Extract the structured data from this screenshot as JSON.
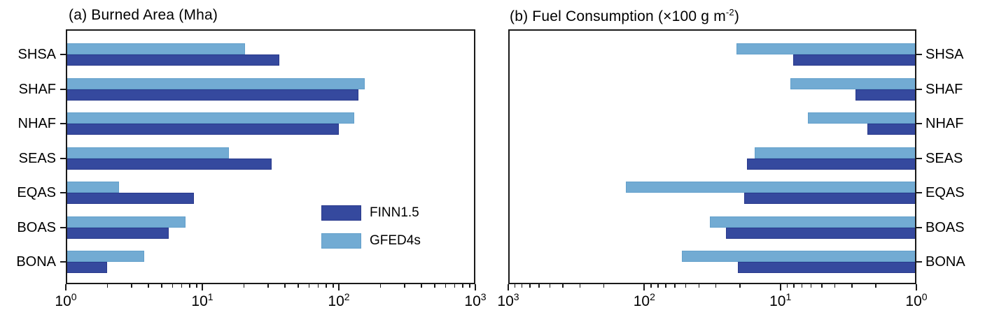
{
  "figure": {
    "background": "#ffffff",
    "frame_color": "#1a1a1a",
    "text_color": "#000000"
  },
  "legend": {
    "items": [
      {
        "label": "FINN1.5",
        "color": "#35499e"
      },
      {
        "label": "GFED4s",
        "color": "#72abd3"
      }
    ]
  },
  "panel_b_title_parts": {
    "main": "(b) Fuel Consumption (×100 g m",
    "sup": "-2",
    "end": ")"
  },
  "chart_data": [
    {
      "id": "burned-area",
      "type": "bar",
      "orientation": "horizontal",
      "title": "(a) Burned Area (Mha)",
      "categories": [
        "SHSA",
        "SHAF",
        "NHAF",
        "SEAS",
        "EQAS",
        "BOAS",
        "BONA"
      ],
      "series": [
        {
          "name": "FINN1.5",
          "color": "#35499e",
          "edge_color": "#2a3a8c",
          "row": "below",
          "values": [
            36.5,
            139,
            100,
            32,
            8.7,
            5.7,
            2.0
          ]
        },
        {
          "name": "GFED4s",
          "color": "#72abd3",
          "edge_color": "#63a0cb",
          "row": "above",
          "values": [
            20.5,
            155,
            129,
            15.7,
            2.45,
            7.5,
            3.75
          ]
        }
      ],
      "xscale": "log",
      "xlim": [
        1,
        1000
      ],
      "x_tick_labels": [
        "10^0",
        "10^1",
        "10^2",
        "10^3"
      ],
      "x_direction": "normal",
      "category_label_side": "left",
      "legend_position": "inside-right",
      "grid": false
    },
    {
      "id": "fuel-consumption",
      "type": "bar",
      "orientation": "horizontal",
      "title": "(b) Fuel Consumption (×100 g m⁻²)",
      "categories": [
        "SHSA",
        "SHAF",
        "NHAF",
        "SEAS",
        "EQAS",
        "BOAS",
        "BONA"
      ],
      "series": [
        {
          "name": "FINN1.5",
          "color": "#35499e",
          "edge_color": "#2a3a8c",
          "row": "below",
          "values": [
            8.0,
            2.8,
            2.3,
            17.6,
            18.5,
            25,
            20.5
          ]
        },
        {
          "name": "GFED4s",
          "color": "#72abd3",
          "edge_color": "#63a0cb",
          "row": "above",
          "values": [
            21,
            8.4,
            6.3,
            15.5,
            137,
            33,
            53
          ]
        }
      ],
      "xscale": "log",
      "xlim": [
        1000,
        1
      ],
      "x_tick_labels": [
        "10^3",
        "10^2",
        "10^1",
        "10^0"
      ],
      "x_direction": "reversed",
      "category_label_side": "right",
      "legend_position": "none",
      "grid": false
    }
  ]
}
